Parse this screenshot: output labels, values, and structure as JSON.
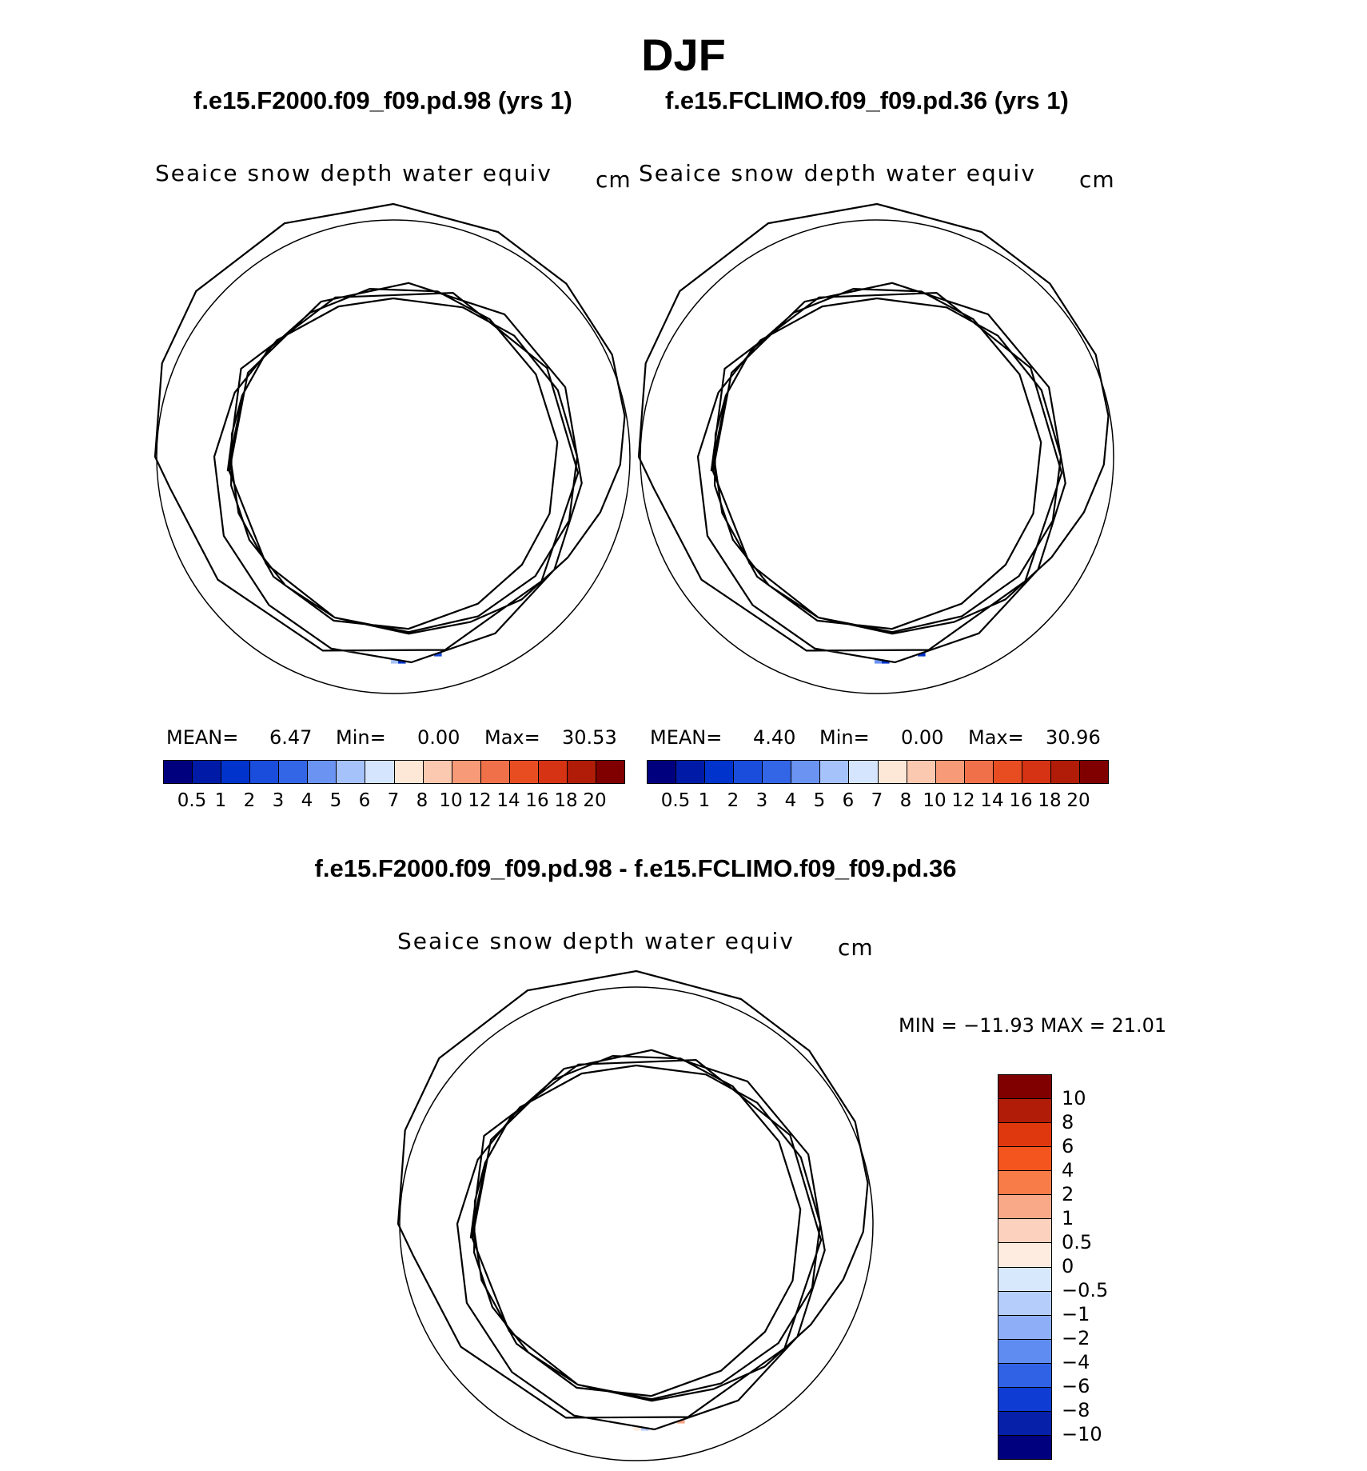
{
  "season": "DJF",
  "diff_title": "f.e15.F2000.f09_f09.pd.98 - f.e15.FCLIMO.f09_f09.pd.36",
  "panels": [
    {
      "case_title": "f.e15.F2000.f09_f09.pd.98 (yrs 1)",
      "variable": "Seaice snow depth water equiv",
      "units": "cm",
      "mean_label": "MEAN=",
      "mean": "6.47",
      "min_label": "Min=",
      "min": "0.00",
      "max_label": "Max=",
      "max": "30.53"
    },
    {
      "case_title": "f.e15.FCLIMO.f09_f09.pd.36 (yrs 1)",
      "variable": "Seaice snow depth water equiv",
      "units": "cm",
      "mean_label": "MEAN=",
      "mean": "4.40",
      "min_label": "Min=",
      "min": "0.00",
      "max_label": "Max=",
      "max": "30.96"
    }
  ],
  "diff_panel": {
    "variable": "Seaice snow depth water equiv",
    "units": "cm",
    "minmax": "MIN = −11.93 MAX =  21.01"
  },
  "colorbar": {
    "colors": [
      "#00007f",
      "#001aa8",
      "#0033cc",
      "#1a4ddb",
      "#3366e6",
      "#6b93f2",
      "#a6c2fa",
      "#d4e5fd",
      "#fde8d8",
      "#fbc8b0",
      "#f69a78",
      "#f0704a",
      "#e84d22",
      "#d63214",
      "#b01c08",
      "#800000"
    ],
    "ticks": [
      "0.5",
      "1",
      "2",
      "3",
      "4",
      "5",
      "6",
      "7",
      "8",
      "10",
      "12",
      "14",
      "16",
      "18",
      "20"
    ]
  },
  "diff_colorbar": {
    "colors_top_to_bottom": [
      "#800000",
      "#b01c08",
      "#e0380e",
      "#f4541e",
      "#f77c48",
      "#f9a888",
      "#fcd1bd",
      "#feece0",
      "#d7e8fc",
      "#b4cdfb",
      "#8eaef8",
      "#5f8cf0",
      "#2f62e4",
      "#0f3cd2",
      "#0620aa",
      "#00007f"
    ],
    "ticks_top_to_bottom": [
      "10",
      "8",
      "6",
      "4",
      "2",
      "1",
      "0.5",
      "0",
      "−0.5",
      "−1",
      "−2",
      "−4",
      "−6",
      "−8",
      "−10"
    ]
  },
  "icons": [
    "continent-outline-icon",
    "ice-ring-field-icon"
  ]
}
